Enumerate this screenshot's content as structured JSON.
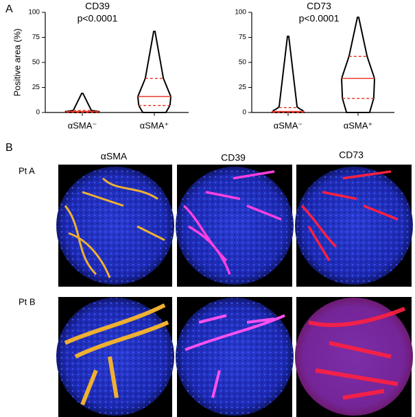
{
  "panel_labels": [
    "A",
    "B"
  ],
  "chart_data": [
    {
      "type": "violin",
      "title": "CD39",
      "subtitle": "p<0.0001",
      "y_label": "Positive area (%)",
      "ylim": [
        0,
        100
      ],
      "yticks": [
        0,
        25,
        50,
        75,
        100
      ],
      "categories": [
        "αSMA⁻",
        "αSMA⁺"
      ],
      "color": "#000000",
      "median_color": "#e8392b",
      "groups": [
        {
          "min": 0,
          "q1": 0,
          "median": 1,
          "q3": 2,
          "max": 19
        },
        {
          "min": 0,
          "q1": 7,
          "median": 16,
          "q3": 34,
          "max": 81
        }
      ]
    },
    {
      "type": "violin",
      "title": "CD73",
      "subtitle": "p<0.0001",
      "ylim": [
        0,
        100
      ],
      "yticks": [
        0,
        25,
        50,
        75,
        100
      ],
      "categories": [
        "αSMA⁻",
        "αSMA⁺"
      ],
      "color": "#000000",
      "median_color": "#e8392b",
      "groups": [
        {
          "min": 0,
          "q1": 0,
          "median": 1,
          "q3": 5,
          "max": 76
        },
        {
          "min": 0,
          "q1": 14,
          "median": 34,
          "q3": 56,
          "max": 95
        }
      ]
    }
  ],
  "image_grid": {
    "columns": [
      "αSMA",
      "CD39",
      "CD73"
    ],
    "rows": [
      "Pt A",
      "Pt B"
    ]
  }
}
